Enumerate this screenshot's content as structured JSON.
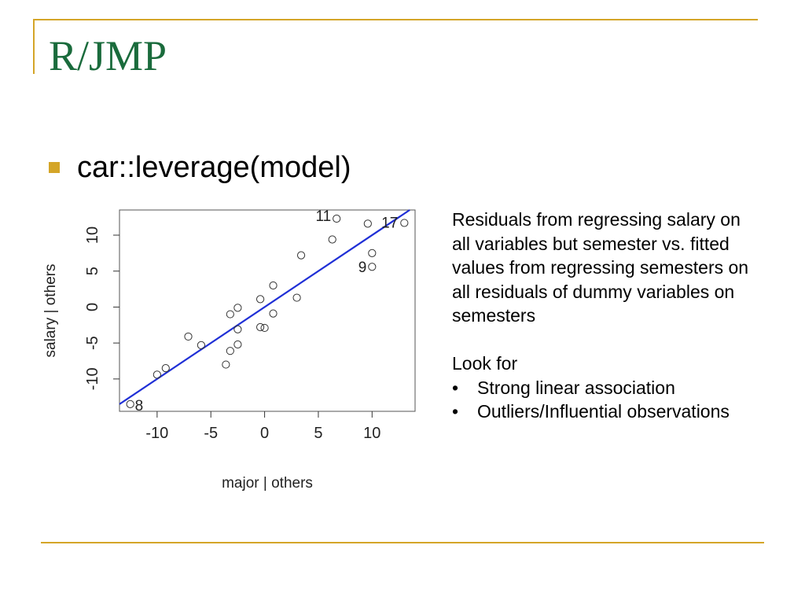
{
  "slide": {
    "title": "R/JMP",
    "bullet": "car::leverage(model)"
  },
  "notes": {
    "description": "Residuals from regressing salary on all variables but semester vs. fitted values from regressing semesters on all residuals of dummy variables on semesters",
    "look_for": "Look for",
    "items": [
      "Strong linear association",
      "Outliers/Influential observations"
    ]
  },
  "colors": {
    "title": "#1a6b3c",
    "accent": "#d4a528",
    "fit_line": "#1f2fd6"
  },
  "chart_data": {
    "type": "scatter",
    "xlabel": "major | others",
    "ylabel": "salary | others",
    "xlim": [
      -13.5,
      14
    ],
    "ylim": [
      -14.5,
      13.5
    ],
    "xticks": [
      -10,
      -5,
      0,
      5,
      10
    ],
    "yticks": [
      -10,
      -5,
      0,
      5,
      10
    ],
    "grid": false,
    "points": [
      {
        "x": -12.5,
        "y": -13.5,
        "label": "8"
      },
      {
        "x": -10.0,
        "y": -9.4
      },
      {
        "x": -9.2,
        "y": -8.5
      },
      {
        "x": -7.1,
        "y": -4.1
      },
      {
        "x": -5.9,
        "y": -5.3
      },
      {
        "x": -3.6,
        "y": -8.0
      },
      {
        "x": -3.2,
        "y": -6.1
      },
      {
        "x": -3.2,
        "y": -1.0
      },
      {
        "x": -2.5,
        "y": -0.1
      },
      {
        "x": -2.5,
        "y": -3.1
      },
      {
        "x": -2.5,
        "y": -5.2
      },
      {
        "x": -0.4,
        "y": 1.1
      },
      {
        "x": -0.4,
        "y": -2.8
      },
      {
        "x": 0.0,
        "y": -2.9
      },
      {
        "x": 0.8,
        "y": 3.0
      },
      {
        "x": 0.8,
        "y": -0.9
      },
      {
        "x": 3.0,
        "y": 1.3
      },
      {
        "x": 3.4,
        "y": 7.2
      },
      {
        "x": 6.3,
        "y": 9.4
      },
      {
        "x": 6.7,
        "y": 12.3,
        "label": "11"
      },
      {
        "x": 9.6,
        "y": 11.6
      },
      {
        "x": 10.0,
        "y": 7.5
      },
      {
        "x": 10.0,
        "y": 5.6,
        "label": "9"
      },
      {
        "x": 13.0,
        "y": 11.7,
        "label": "17"
      }
    ],
    "fit_line": {
      "slope": 1.0,
      "intercept": 0.0
    }
  }
}
